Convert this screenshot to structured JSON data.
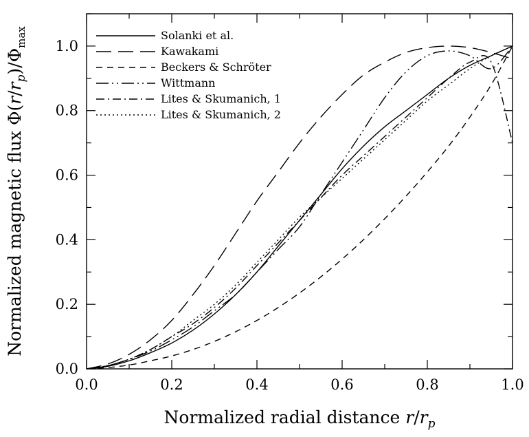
{
  "chart_data": {
    "type": "line",
    "xlabel": "Normalized radial distance r/r_p",
    "ylabel": "Normalized magnetic flux Φ(r/r_p)/Φ_max",
    "xlim": [
      0.0,
      1.0
    ],
    "ylim": [
      0.0,
      1.1
    ],
    "x_ticks": [
      "0.0",
      "0.2",
      "0.4",
      "0.6",
      "0.8",
      "1.0"
    ],
    "y_ticks": [
      "0.0",
      "0.2",
      "0.4",
      "0.6",
      "0.8",
      "1.0"
    ],
    "grid": false,
    "legend_position": "top-left",
    "x": [
      0,
      0.05,
      0.1,
      0.15,
      0.2,
      0.25,
      0.3,
      0.35,
      0.4,
      0.45,
      0.5,
      0.55,
      0.6,
      0.65,
      0.7,
      0.75,
      0.8,
      0.85,
      0.9,
      0.95,
      1.0
    ],
    "series": [
      {
        "name": "Solanki et al.",
        "dash": "solid",
        "values": [
          0,
          0.008,
          0.025,
          0.05,
          0.08,
          0.12,
          0.17,
          0.23,
          0.3,
          0.38,
          0.46,
          0.54,
          0.62,
          0.69,
          0.75,
          0.8,
          0.85,
          0.9,
          0.94,
          0.97,
          1.0
        ]
      },
      {
        "name": "Kawakami",
        "dash": "long-dash",
        "values": [
          0,
          0.015,
          0.045,
          0.09,
          0.15,
          0.23,
          0.32,
          0.42,
          0.52,
          0.61,
          0.7,
          0.78,
          0.85,
          0.91,
          0.95,
          0.98,
          0.995,
          1.0,
          0.995,
          0.98,
          0.96
        ]
      },
      {
        "name": "Beckers & Schröter",
        "dash": "dash",
        "values": [
          0,
          0.004,
          0.012,
          0.025,
          0.04,
          0.06,
          0.085,
          0.115,
          0.15,
          0.19,
          0.235,
          0.285,
          0.34,
          0.4,
          0.465,
          0.535,
          0.61,
          0.69,
          0.78,
          0.88,
          1.0
        ]
      },
      {
        "name": "Wittmann",
        "dash": "dash-dot-dot",
        "values": [
          0,
          0.01,
          0.03,
          0.055,
          0.09,
          0.13,
          0.18,
          0.23,
          0.3,
          0.37,
          0.44,
          0.54,
          0.64,
          0.74,
          0.84,
          0.92,
          0.97,
          0.985,
          0.97,
          0.93,
          1.0
        ]
      },
      {
        "name": "Lites & Skumanich, 1",
        "dash": "dash-dot",
        "values": [
          0,
          0.01,
          0.03,
          0.06,
          0.1,
          0.14,
          0.19,
          0.25,
          0.32,
          0.39,
          0.46,
          0.53,
          0.6,
          0.66,
          0.72,
          0.78,
          0.84,
          0.9,
          0.95,
          0.95,
          0.7
        ]
      },
      {
        "name": "Lites & Skumanich, 2",
        "dash": "dot",
        "values": [
          0,
          0.01,
          0.03,
          0.06,
          0.1,
          0.15,
          0.2,
          0.26,
          0.33,
          0.4,
          0.47,
          0.53,
          0.59,
          0.65,
          0.71,
          0.77,
          0.83,
          0.88,
          0.93,
          0.97,
          1.0
        ]
      }
    ]
  }
}
